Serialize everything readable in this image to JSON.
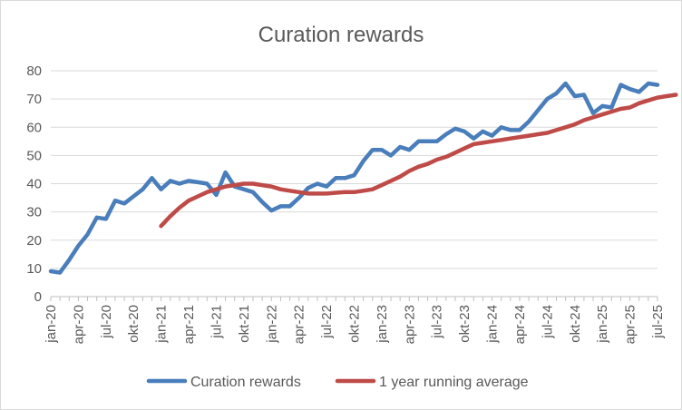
{
  "chart_data": {
    "type": "line",
    "title": "Curation rewards",
    "xlabel": "",
    "ylabel": "",
    "ylim": [
      0,
      80
    ],
    "yticks": [
      "0",
      "10",
      "20",
      "30",
      "40",
      "50",
      "60",
      "70",
      "80"
    ],
    "xtick_labels": [
      "jan-20",
      "apr-20",
      "jul-20",
      "okt-20",
      "jan-21",
      "apr-21",
      "jul-21",
      "okt-21",
      "jan-22",
      "apr-22",
      "jul-22",
      "okt-22",
      "jan-23",
      "apr-23",
      "jul-23",
      "okt-23",
      "jan-24",
      "apr-24",
      "jul-24",
      "okt-24",
      "jan-25",
      "apr-25",
      "jul-25"
    ],
    "grid": "horizontal",
    "legend_position": "bottom",
    "series": [
      {
        "name": "Curation rewards",
        "color": "#4a7ebb",
        "start_index": 0,
        "values": [
          9,
          8.5,
          13,
          18,
          22,
          28,
          27.5,
          34,
          33,
          35.5,
          38,
          42,
          38,
          41,
          40,
          41,
          40.5,
          40,
          36,
          44,
          39,
          38,
          37,
          33.5,
          30.5,
          32,
          32,
          35,
          38.5,
          40,
          39,
          42,
          42,
          43,
          48,
          52,
          52,
          50,
          53,
          52,
          55,
          55,
          55,
          57.5,
          59.5,
          58.5,
          56,
          58.5,
          57,
          60,
          59,
          59,
          62,
          66,
          70,
          72,
          75.5,
          71,
          71.5,
          65,
          67.5,
          67,
          75,
          73.5,
          72.5,
          75.5,
          75
        ]
      },
      {
        "name": "1 year running average",
        "color": "#be4b48",
        "start_index": 12,
        "values": [
          25,
          28.5,
          31.5,
          34,
          35.5,
          37,
          38,
          39,
          39.5,
          40,
          40,
          39.5,
          39,
          38,
          37.5,
          37,
          36.5,
          36.5,
          36.5,
          36.8,
          37,
          37,
          37.5,
          38,
          39.5,
          41,
          42.5,
          44.5,
          46,
          47,
          48.5,
          49.5,
          51,
          52.5,
          54,
          54.5,
          55,
          55.5,
          56,
          56.5,
          57,
          57.5,
          58,
          59,
          60,
          61,
          62.5,
          63.5,
          64.5,
          65.5,
          66.5,
          67,
          68.5,
          69.5,
          70.5,
          71,
          71.5
        ]
      }
    ]
  }
}
